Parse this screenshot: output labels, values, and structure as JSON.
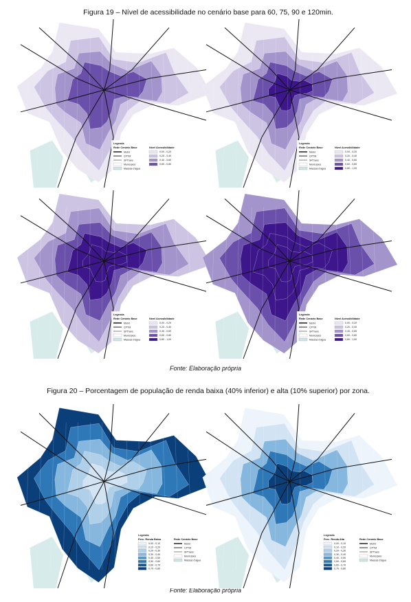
{
  "figure_19": {
    "caption": "Figura 19 – Nível de acessibilidade no cenário base para 60, 75, 90 e 120min.",
    "legend": {
      "title": "Legenda",
      "network_title": "Rede Cenário Base",
      "network": [
        "Metrô",
        "CPTM",
        "SPTrans",
        "Municípios",
        "Massas d'água"
      ],
      "level_title": "Nível Acessibilidade"
    },
    "maps": [
      {
        "classes": [
          "0,00 - 0,20",
          "0,20 - 0,40",
          "0,40 - 0,60",
          "0,60 - 0,80"
        ]
      },
      {
        "classes": [
          "0,00 - 0,20",
          "0,20 - 0,40",
          "0,40 - 0,60",
          "0,60 - 0,80",
          "0,80 - 1,00"
        ]
      },
      {
        "classes": [
          "0,00 - 0,20",
          "0,20 - 0,40",
          "0,40 - 0,60",
          "0,60 - 0,80",
          "0,80 - 1,00"
        ]
      },
      {
        "classes": [
          "0,00 - 0,20",
          "0,20 - 0,40",
          "0,40 - 0,60",
          "0,60 - 0,80",
          "0,80 - 1,00"
        ]
      }
    ],
    "source": "Fonte: Elaboração própria"
  },
  "figure_20": {
    "caption": "Figura 20 – Porcentagem de população de renda baixa (40% inferior) e alta (10% superior) por zona.",
    "legend": {
      "title": "Legenda",
      "network_title": "Rede Cenário Base",
      "network": [
        "Metrô",
        "CPTM",
        "SPTrans",
        "Municípios",
        "Massas d'água"
      ]
    },
    "maps": [
      {
        "class_title": "Perc. Renda Baixa",
        "classes": [
          "0,00 - 0,10",
          "0,10 - 0,20",
          "0,20 - 0,30",
          "0,30 - 0,40",
          "0,40 - 0,50",
          "0,50 - 0,60",
          "0,60 - 0,70",
          "0,70 - 0,80"
        ]
      },
      {
        "class_title": "Perc. Renda Alta",
        "classes": [
          "0,00 - 0,10",
          "0,10 - 0,20",
          "0,20 - 0,30",
          "0,30 - 0,40",
          "0,40 - 0,50",
          "0,50 - 0,60",
          "0,60 - 0,70",
          "0,70 - 0,80"
        ]
      }
    ],
    "source": "Fonte: Elaboração própria"
  }
}
